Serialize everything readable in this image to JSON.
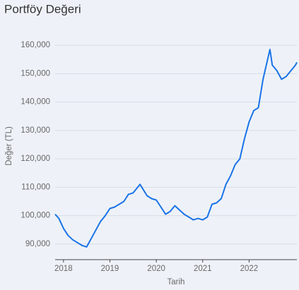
{
  "chart_data": {
    "type": "line",
    "title": "Portföy Değeri",
    "x_label": "Tarih",
    "y_label": "Değer (TL)",
    "x": [
      2017.82,
      2017.9,
      2018.0,
      2018.1,
      2018.2,
      2018.3,
      2018.4,
      2018.5,
      2018.6,
      2018.7,
      2018.8,
      2018.9,
      2019.0,
      2019.1,
      2019.2,
      2019.3,
      2019.4,
      2019.5,
      2019.65,
      2019.8,
      2019.9,
      2020.0,
      2020.1,
      2020.2,
      2020.3,
      2020.4,
      2020.5,
      2020.6,
      2020.7,
      2020.8,
      2020.9,
      2021.0,
      2021.1,
      2021.2,
      2021.3,
      2021.4,
      2021.5,
      2021.6,
      2021.7,
      2021.8,
      2021.9,
      2022.0,
      2022.1,
      2022.2,
      2022.3,
      2022.4,
      2022.45,
      2022.5,
      2022.6,
      2022.7,
      2022.8,
      2022.9,
      2023.0,
      2023.03
    ],
    "series": [
      {
        "name": "Portföy Değeri",
        "color": "#1a73e8",
        "values": [
          100500,
          99000,
          95500,
          93000,
          91500,
          90500,
          89500,
          89000,
          92000,
          95000,
          98000,
          100000,
          102500,
          103000,
          104000,
          105000,
          107500,
          108000,
          111000,
          107000,
          106000,
          105500,
          103000,
          100500,
          101500,
          103500,
          102000,
          100500,
          99500,
          98500,
          99000,
          98500,
          99500,
          104000,
          104500,
          106000,
          111000,
          114000,
          118000,
          120000,
          127000,
          133000,
          137000,
          138000,
          148000,
          155000,
          158500,
          153000,
          151000,
          148000,
          149000,
          151000,
          153000,
          154000
        ]
      }
    ],
    "xlim": [
      2017.82,
      2023.03
    ],
    "xticks": [
      2018,
      2019,
      2020,
      2021,
      2022
    ],
    "ylim": [
      84500,
      164000
    ],
    "yticks": [
      {
        "value": 90000,
        "label": "90,000"
      },
      {
        "value": 100000,
        "label": "100,000"
      },
      {
        "value": 110000,
        "label": "110,000"
      },
      {
        "value": 120000,
        "label": "120,000"
      },
      {
        "value": 130000,
        "label": "130,000"
      },
      {
        "value": 140000,
        "label": "140,000"
      },
      {
        "value": 150000,
        "label": "150,000"
      },
      {
        "value": 160000,
        "label": "160,000"
      }
    ],
    "grid": true
  }
}
